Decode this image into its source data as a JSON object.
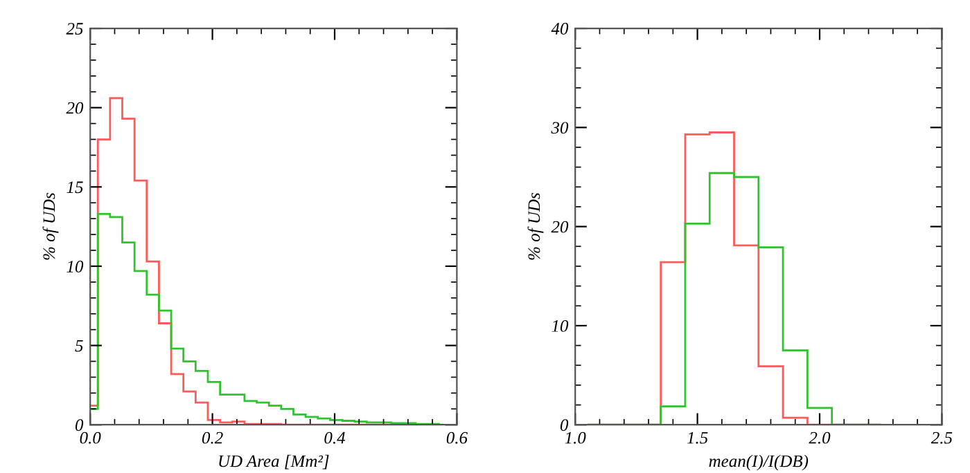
{
  "chart_data": [
    {
      "type": "histogram",
      "xlabel": "UD Area [Mm²]",
      "ylabel": "% of UDs",
      "xlim": [
        0.0,
        0.6
      ],
      "xticks": [
        {
          "value": 0.0,
          "label": "0.0"
        },
        {
          "value": 0.2,
          "label": "0.2"
        },
        {
          "value": 0.4,
          "label": "0.4"
        },
        {
          "value": 0.6,
          "label": "0.6"
        }
      ],
      "ylim": [
        0,
        25
      ],
      "yticks": [
        0,
        5,
        10,
        15,
        20,
        25
      ],
      "grid": false,
      "legend": false,
      "bins": [
        0.0,
        0.0125,
        0.0325,
        0.0525,
        0.0725,
        0.0925,
        0.1125,
        0.1325,
        0.1525,
        0.1725,
        0.1925,
        0.2125,
        0.2325,
        0.2525,
        0.2725,
        0.2925,
        0.3125,
        0.3325,
        0.3525,
        0.3725,
        0.3925,
        0.4125,
        0.4325,
        0.4525,
        0.4725,
        0.4925,
        0.5125,
        0.5325,
        0.5525,
        0.5725
      ],
      "series": [
        {
          "color": "#ff5a5a",
          "values": [
            1.2,
            18.0,
            20.6,
            19.3,
            15.4,
            10.3,
            6.4,
            3.2,
            2.1,
            1.4,
            0.3,
            0.15,
            0.2,
            0.05,
            0.05,
            0.05,
            0.0,
            0.0,
            0.0,
            0.0,
            0.0,
            0.0,
            0.0,
            0.0,
            0.0,
            0.0,
            0.0,
            0.0,
            0.0
          ]
        },
        {
          "color": "#2ec42e",
          "values": [
            1.0,
            13.3,
            13.1,
            11.5,
            9.7,
            8.2,
            7.2,
            4.8,
            4.0,
            3.4,
            2.7,
            1.9,
            1.9,
            1.5,
            1.4,
            1.2,
            1.0,
            0.65,
            0.5,
            0.4,
            0.3,
            0.25,
            0.2,
            0.15,
            0.15,
            0.1,
            0.1,
            0.05,
            0.05
          ]
        }
      ]
    },
    {
      "type": "histogram",
      "xlabel": "mean(I)/I(DB)",
      "ylabel": "% of UDs",
      "xlim": [
        1.0,
        2.5
      ],
      "xticks": [
        {
          "value": 1.0,
          "label": "1.0"
        },
        {
          "value": 1.5,
          "label": "1.5"
        },
        {
          "value": 2.0,
          "label": "2.0"
        },
        {
          "value": 2.5,
          "label": "2.5"
        }
      ],
      "ylim": [
        0,
        40
      ],
      "yticks": [
        0,
        10,
        20,
        30,
        40
      ],
      "grid": false,
      "legend": false,
      "bins": [
        1.05,
        1.15,
        1.25,
        1.35,
        1.45,
        1.55,
        1.65,
        1.75,
        1.85,
        1.95,
        2.05,
        2.15,
        2.25
      ],
      "series": [
        {
          "color": "#ff5a5a",
          "values": [
            0.0,
            0.0,
            0.0,
            16.4,
            29.3,
            29.5,
            18.1,
            5.9,
            0.7,
            0.0,
            0.0,
            0.0
          ]
        },
        {
          "color": "#2ec42e",
          "values": [
            0.0,
            0.0,
            0.0,
            1.85,
            20.3,
            25.4,
            25.0,
            17.9,
            7.5,
            1.7,
            0.0,
            0.0
          ]
        }
      ]
    }
  ]
}
